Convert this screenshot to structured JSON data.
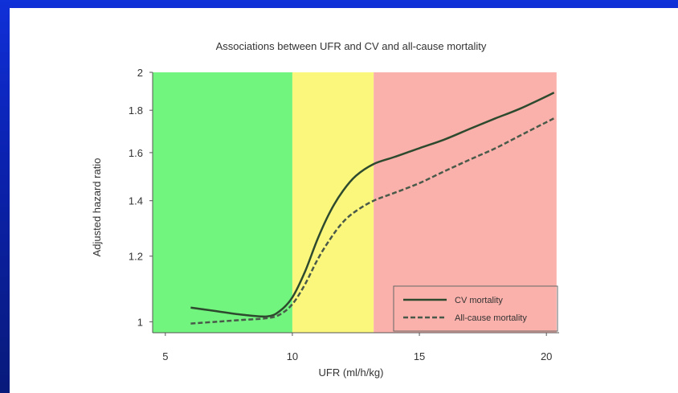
{
  "chart_data": {
    "type": "line",
    "title": "Associations between UFR and CV and all-cause mortality",
    "xlabel": "UFR (ml/h/kg)",
    "ylabel": "Adjusted hazard ratio",
    "xlim": [
      4.5,
      20.5
    ],
    "ylim": [
      0.97,
      2.0
    ],
    "y_scale": "log",
    "x_ticks": [
      5,
      10,
      15,
      20
    ],
    "y_ticks": [
      1,
      1.2,
      1.4,
      1.6,
      1.8,
      2
    ],
    "x_tick_labels": [
      "5",
      "10",
      "15",
      "20"
    ],
    "y_tick_labels": [
      "1",
      "1.2",
      "1.4",
      "1.6",
      "1.8",
      "2"
    ],
    "background_bands": [
      {
        "from": 4.5,
        "to": 10,
        "color": "#72f57e"
      },
      {
        "from": 10,
        "to": 13.2,
        "color": "#fbf67c"
      },
      {
        "from": 13.2,
        "to": 20.4,
        "color": "#fbb1ab"
      }
    ],
    "legend_position": "bottom-right",
    "series": [
      {
        "name": "CV mortality",
        "style": "solid",
        "color": "#2e4a2e",
        "x": [
          6,
          7,
          8,
          9,
          9.5,
          10,
          10.5,
          11,
          11.5,
          12,
          12.5,
          13.2,
          14,
          15,
          16,
          17,
          18,
          19,
          20.3
        ],
        "y": [
          1.04,
          1.03,
          1.02,
          1.015,
          1.03,
          1.07,
          1.15,
          1.26,
          1.36,
          1.44,
          1.5,
          1.55,
          1.58,
          1.62,
          1.66,
          1.71,
          1.76,
          1.81,
          1.89
        ]
      },
      {
        "name": "All-cause mortality",
        "style": "dashed",
        "color": "#4a5a4a",
        "x": [
          6,
          7,
          8,
          9,
          9.5,
          10,
          10.5,
          11,
          11.5,
          12,
          12.5,
          13.2,
          14,
          15,
          16,
          17,
          18,
          19,
          20.3
        ],
        "y": [
          0.995,
          1.0,
          1.005,
          1.01,
          1.02,
          1.05,
          1.11,
          1.19,
          1.26,
          1.32,
          1.36,
          1.4,
          1.43,
          1.47,
          1.52,
          1.57,
          1.62,
          1.68,
          1.76
        ]
      }
    ]
  }
}
